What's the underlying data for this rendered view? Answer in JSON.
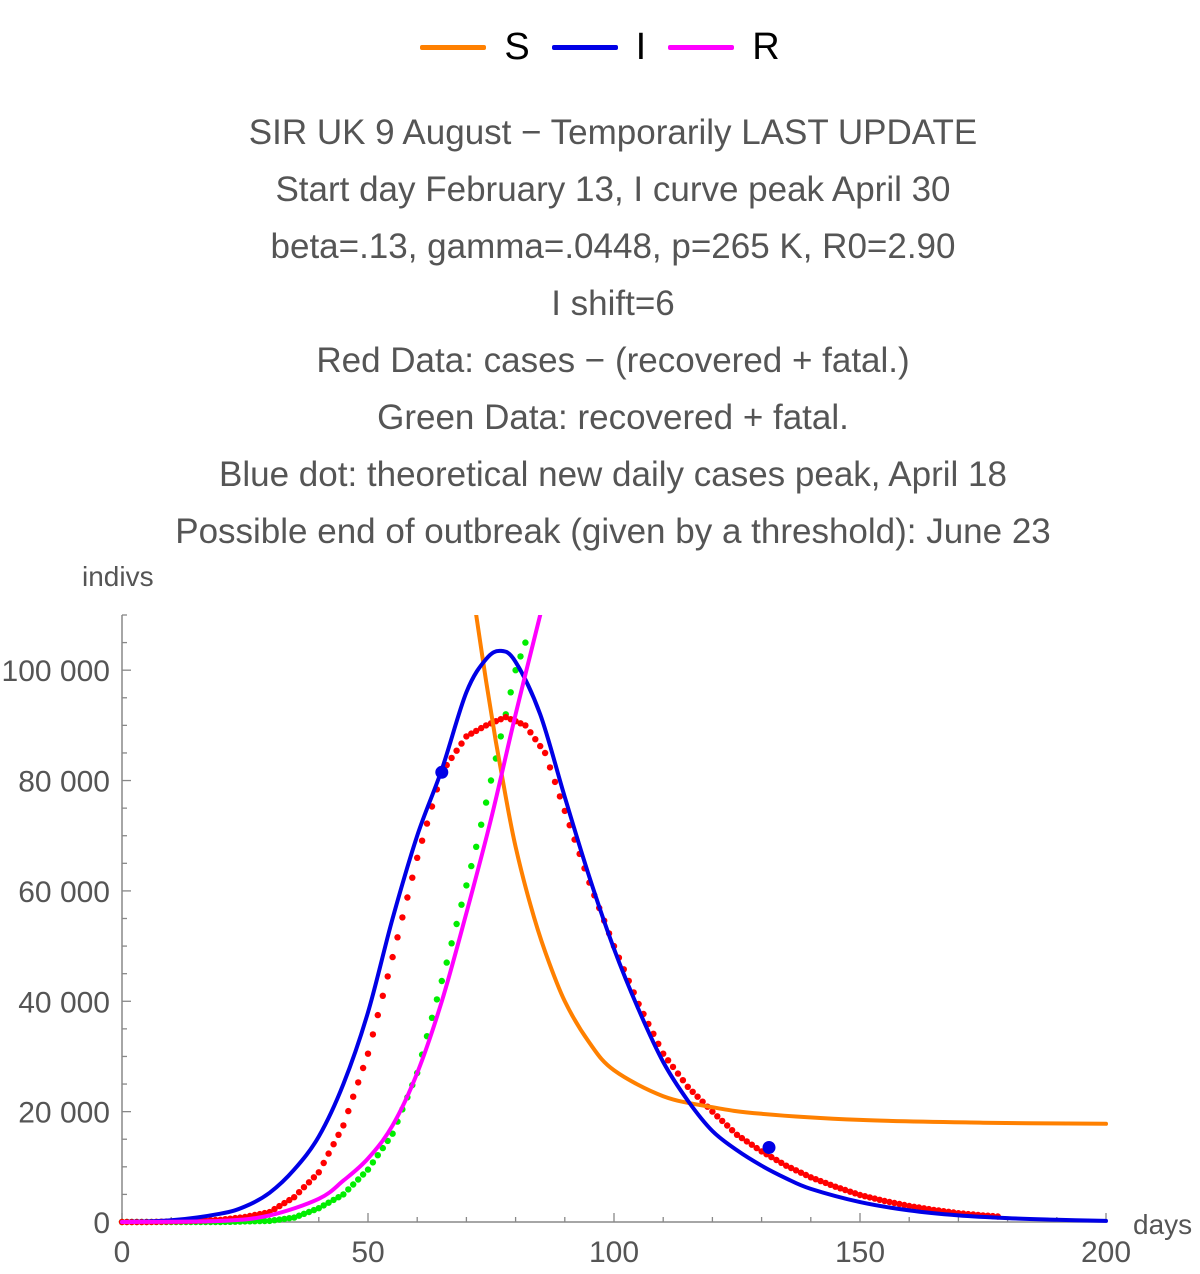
{
  "chart_data": {
    "type": "line",
    "legend": {
      "placement": "top-center",
      "entries": [
        {
          "name": "S",
          "color": "#ff8000"
        },
        {
          "name": "I",
          "color": "#0000e6"
        },
        {
          "name": "R",
          "color": "#ff00ff"
        }
      ]
    },
    "title_lines": [
      "SIR UK 9 August − Temporarily LAST UPDATE",
      "Start day February 13, I curve peak April 30",
      "beta=.13, gamma=.0448, p=265 K, R0=2.90",
      "I shift=6",
      "Red Data: cases − (recovered + fatal.)",
      "Green Data: recovered + fatal.",
      "Blue dot: theoretical new daily cases peak, April 18",
      "Possible end of outbreak (given by a threshold): June 23"
    ],
    "xlabel": "days",
    "ylabel": "indivs",
    "xlim": [
      0,
      200
    ],
    "ylim": [
      0,
      110000
    ],
    "x_ticks": [
      0,
      50,
      100,
      150,
      200
    ],
    "y_ticks": [
      0,
      20000,
      40000,
      60000,
      80000,
      100000
    ],
    "x_tick_labels": [
      "0",
      "50",
      "100",
      "150",
      "200"
    ],
    "y_tick_labels": [
      "0",
      "20 000",
      "40 000",
      "60 000",
      "80 000",
      "100 000"
    ],
    "grid": false,
    "series": [
      {
        "name": "S",
        "color": "#ff8000",
        "style": "line",
        "x": [
          72,
          74,
          76,
          78,
          80,
          83,
          86,
          90,
          95,
          100,
          110,
          120,
          130,
          150,
          175,
          200
        ],
        "y": [
          110000,
          98000,
          87000,
          77000,
          68000,
          57500,
          49000,
          40000,
          32500,
          27500,
          22800,
          20800,
          19600,
          18500,
          18000,
          17800
        ]
      },
      {
        "name": "I",
        "color": "#0000e6",
        "style": "line",
        "x": [
          0,
          10,
          20,
          25,
          30,
          35,
          40,
          45,
          50,
          55,
          60,
          65,
          70,
          74,
          77,
          80,
          85,
          90,
          95,
          100,
          105,
          110,
          115,
          120,
          125,
          130,
          135,
          140,
          150,
          160,
          170,
          180,
          190,
          200
        ],
        "y": [
          0,
          300,
          1500,
          2800,
          5300,
          9500,
          15500,
          25000,
          38000,
          55000,
          70000,
          82000,
          96000,
          102000,
          103500,
          101500,
          92000,
          77000,
          62500,
          49500,
          38500,
          29000,
          22000,
          16500,
          13000,
          10200,
          7900,
          6000,
          3600,
          2100,
          1200,
          700,
          400,
          200
        ]
      },
      {
        "name": "R",
        "color": "#ff00ff",
        "style": "line",
        "x": [
          0,
          20,
          30,
          40,
          45,
          50,
          55,
          60,
          65,
          70,
          75,
          80,
          85
        ],
        "y": [
          0,
          200,
          1200,
          4200,
          7500,
          11500,
          17500,
          27000,
          40000,
          56000,
          73000,
          92000,
          110000
        ]
      },
      {
        "name": "Red Data",
        "color": "#ff0000",
        "style": "dots",
        "x": [
          0,
          5,
          10,
          15,
          20,
          25,
          30,
          35,
          40,
          45,
          50,
          55,
          60,
          65,
          70,
          74,
          78,
          82,
          86,
          90,
          95,
          100,
          105,
          110,
          115,
          120,
          125,
          130,
          135,
          140,
          145,
          150,
          155,
          160,
          165,
          170,
          175,
          178
        ],
        "y": [
          0,
          0,
          100,
          200,
          400,
          900,
          1800,
          4500,
          9000,
          17500,
          30500,
          48000,
          66000,
          81500,
          88000,
          90000,
          91500,
          90000,
          85000,
          74500,
          61500,
          50000,
          39500,
          30500,
          24500,
          20000,
          15800,
          12800,
          10200,
          8100,
          6400,
          4900,
          3800,
          2900,
          2200,
          1600,
          1200,
          1000
        ]
      },
      {
        "name": "Green Data",
        "color": "#00ee00",
        "style": "dots",
        "x": [
          0,
          10,
          20,
          30,
          35,
          40,
          45,
          50,
          55,
          60,
          63,
          66,
          69,
          72,
          75,
          78,
          80,
          82
        ],
        "y": [
          0,
          0,
          0,
          200,
          800,
          2500,
          5000,
          9500,
          16000,
          27000,
          37000,
          47000,
          57500,
          68000,
          80000,
          92000,
          100000,
          105000
        ]
      },
      {
        "name": "Blue dot",
        "color": "#0000e6",
        "style": "markers",
        "x": [
          65,
          131.5
        ],
        "y": [
          81500,
          13500
        ]
      }
    ]
  }
}
